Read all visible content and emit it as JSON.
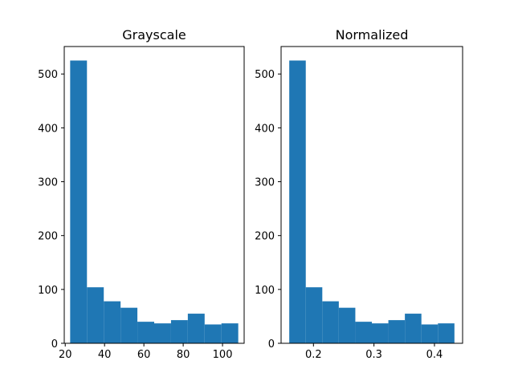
{
  "chart_data": [
    {
      "type": "bar",
      "title": "Grayscale",
      "xlabel": "",
      "ylabel": "",
      "bin_edges": [
        22.5,
        31.05,
        39.6,
        48.15,
        56.7,
        65.25,
        73.8,
        82.35,
        90.9,
        99.45,
        108.0
      ],
      "values": [
        525,
        104,
        78,
        66,
        40,
        37,
        43,
        55,
        35,
        37
      ],
      "xlim": [
        19.5,
        111
      ],
      "ylim": [
        0,
        551
      ],
      "xticks": [
        20,
        40,
        60,
        80,
        100
      ],
      "xtick_labels": [
        "20",
        "40",
        "60",
        "80",
        "100"
      ],
      "yticks": [
        0,
        100,
        200,
        300,
        400,
        500
      ],
      "ytick_labels": [
        "0",
        "100",
        "200",
        "300",
        "400",
        "500"
      ],
      "bar_color": "#1f77b4",
      "grid": false
    },
    {
      "type": "bar",
      "title": "Normalized",
      "xlabel": "",
      "ylabel": "",
      "bin_edges": [
        0.16,
        0.1873,
        0.2146,
        0.2419,
        0.2692,
        0.2965,
        0.3238,
        0.3511,
        0.3784,
        0.4057,
        0.433
      ],
      "values": [
        525,
        104,
        78,
        66,
        40,
        37,
        43,
        55,
        35,
        37
      ],
      "xlim": [
        0.1465,
        0.4465
      ],
      "ylim": [
        0,
        551
      ],
      "xticks": [
        0.2,
        0.3,
        0.4
      ],
      "xtick_labels": [
        "0.2",
        "0.3",
        "0.4"
      ],
      "yticks": [
        0,
        100,
        200,
        300,
        400,
        500
      ],
      "ytick_labels": [
        "0",
        "100",
        "200",
        "300",
        "400",
        "500"
      ],
      "bar_color": "#1f77b4",
      "grid": false
    }
  ]
}
